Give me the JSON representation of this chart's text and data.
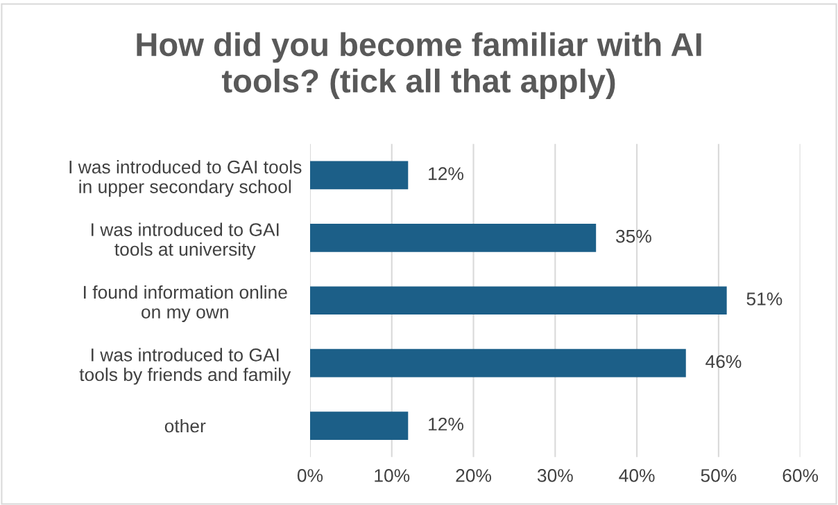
{
  "chart_data": {
    "type": "bar",
    "orientation": "horizontal",
    "title": "How did you become familiar with AI\ntools? (tick all that apply)",
    "categories": [
      "I was introduced to GAI tools\nin upper secondary school",
      "I was introduced to GAI\ntools at university",
      "I found information online\non my own",
      "I was introduced to GAI\ntools by friends and family",
      "other"
    ],
    "values": [
      12,
      35,
      51,
      46,
      12
    ],
    "value_labels": [
      "12%",
      "35%",
      "51%",
      "46%",
      "12%"
    ],
    "color": "#1c5f88",
    "xlim": [
      0,
      60
    ],
    "xticks": [
      {
        "value": 0,
        "label": "0%"
      },
      {
        "value": 10,
        "label": "10%"
      },
      {
        "value": 20,
        "label": "20%"
      },
      {
        "value": 30,
        "label": "30%"
      },
      {
        "value": 40,
        "label": "40%"
      },
      {
        "value": 50,
        "label": "50%"
      },
      {
        "value": 60,
        "label": "60%"
      }
    ],
    "grid": "x",
    "legend": false
  }
}
